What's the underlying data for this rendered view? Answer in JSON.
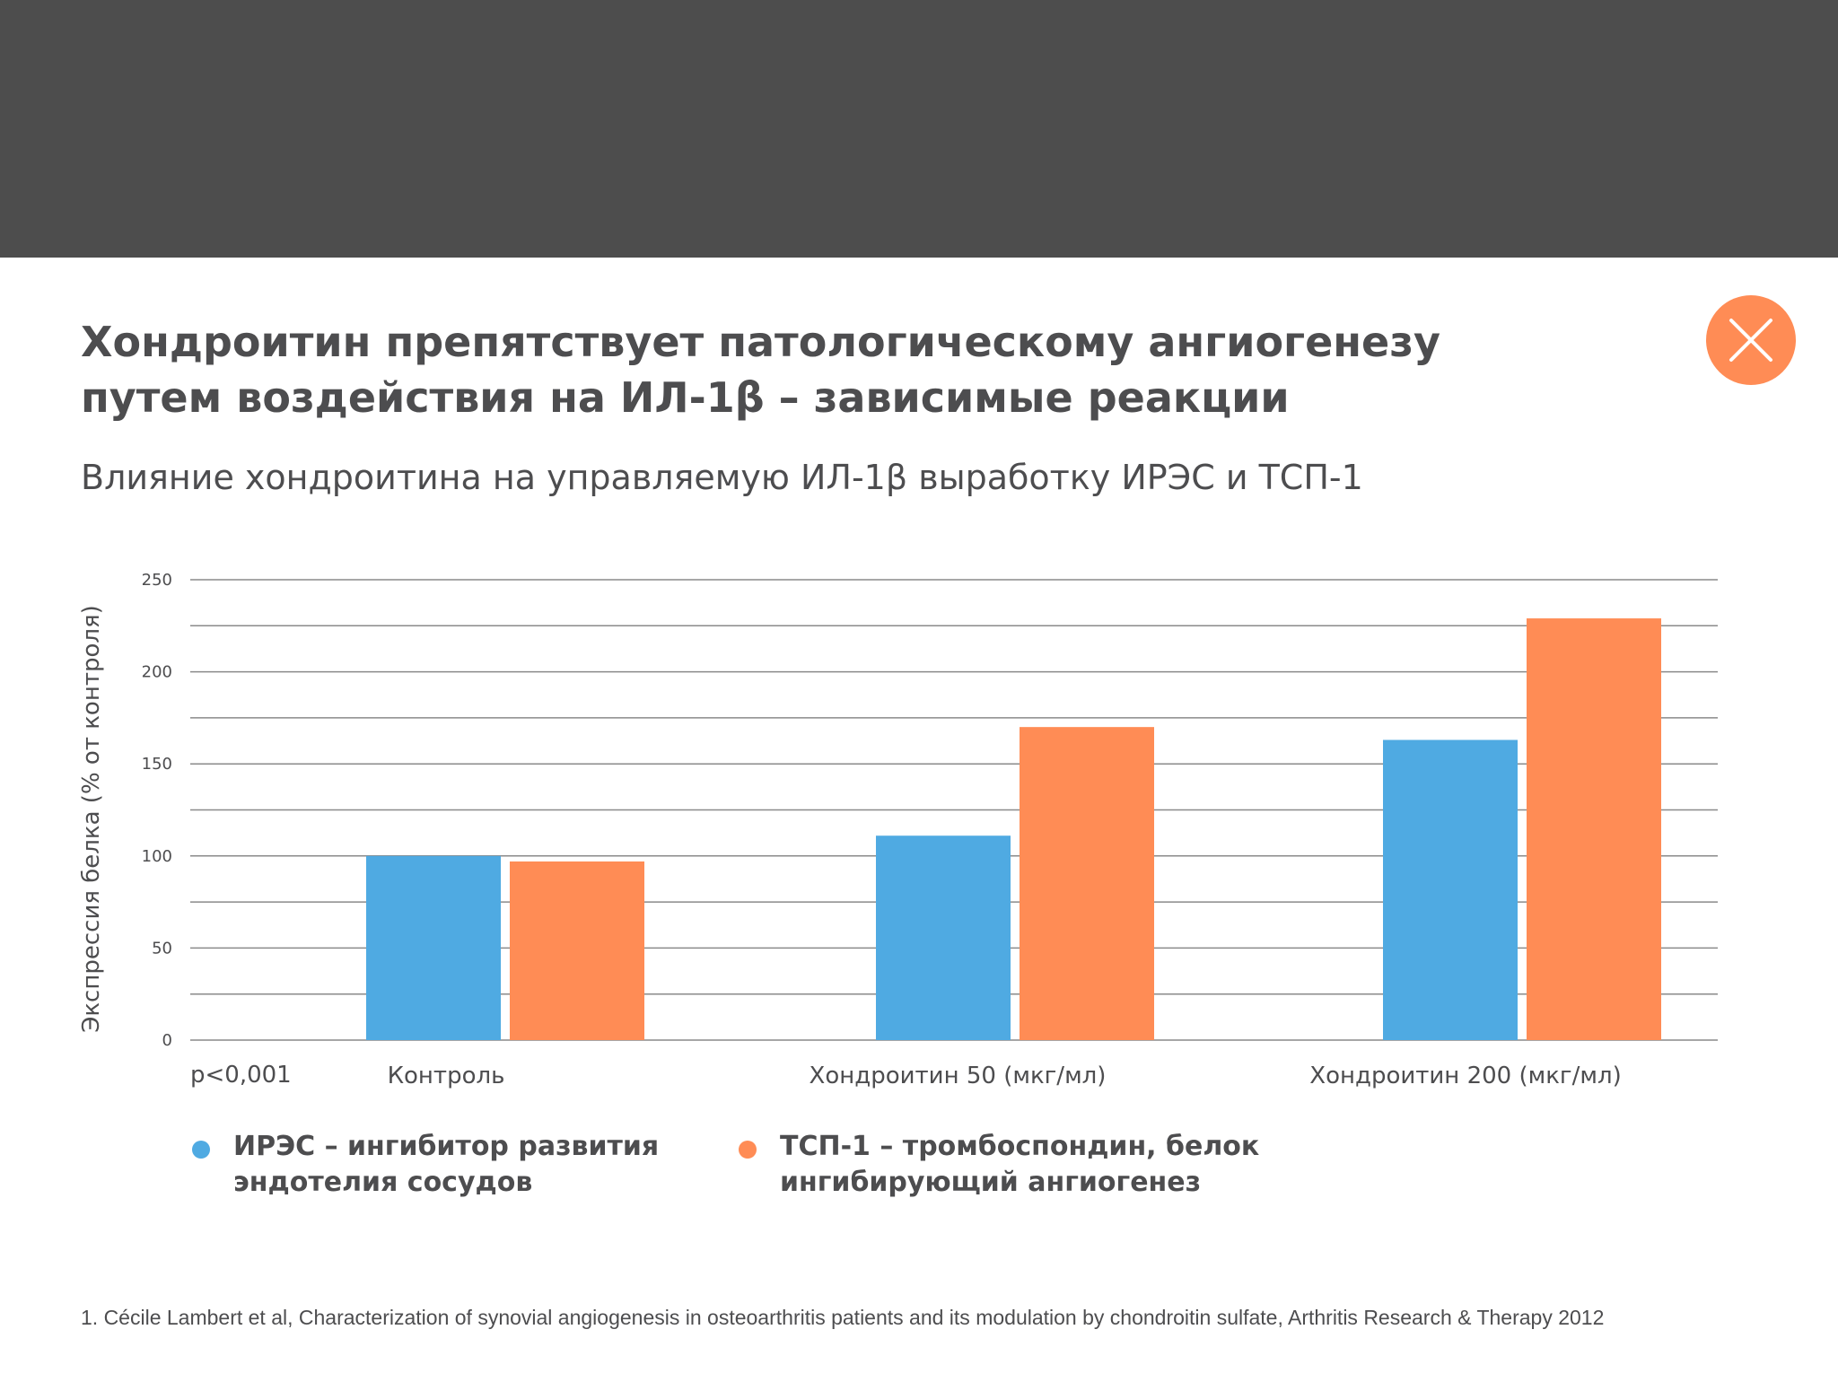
{
  "page": {
    "title_lines": [
      "Хондроитин препятствует патологическому ангиогенезу",
      "путем воздействия на  ИЛ-1β – зависимые реакции"
    ],
    "subtitle": "Влияние хондроитина на управляемую ИЛ-1β выработку ИРЭС и ТСП-1",
    "close_icon": "close-icon",
    "footnote": "1. Cécile Lambert et al, Characterization of synovial angiogenesis in osteoarthritis patients and its modulation by chondroitin sulfate, Arthritis Research & Therapy 2012"
  },
  "colors": {
    "topbar": "#4d4d4d",
    "accent": "#ff8c55",
    "series_blue": "#4faae2",
    "series_orange": "#ff8c55",
    "text": "#4d4d4f",
    "grid": "#8a8a8a"
  },
  "legend": [
    {
      "lines": [
        "ИРЭС – ингибитор развития",
        "эндотелия сосудов"
      ],
      "color": "#4faae2"
    },
    {
      "lines": [
        "ТСП-1 – тромбоспондин, белок",
        "ингибирующий ангиогенез"
      ],
      "color": "#ff8c55"
    }
  ],
  "chart_data": {
    "type": "bar",
    "title": "Влияние хондроитина на управляемую ИЛ-1β выработку ИРЭС и ТСП-1",
    "xlabel": "",
    "ylabel": "Экспрессия белка (% от контроля)",
    "ylim": [
      0,
      250
    ],
    "yticks": [
      0,
      50,
      100,
      150,
      200,
      250
    ],
    "grid": true,
    "categories": [
      "Контроль",
      "Хондроитин 50 (мкг/мл)",
      "Хондроитин 200 (мкг/мл)"
    ],
    "series": [
      {
        "name": "ИРЭС – ингибитор развития эндотелия сосудов",
        "color": "#4faae2",
        "values": [
          100,
          111,
          163
        ]
      },
      {
        "name": "ТСП-1 – тромбоспондин, белок ингибирующий ангиогенез",
        "color": "#ff8c55",
        "values": [
          97,
          170,
          229
        ]
      }
    ],
    "annotations": [
      "p<0,001"
    ],
    "legend_position": "bottom-left"
  }
}
